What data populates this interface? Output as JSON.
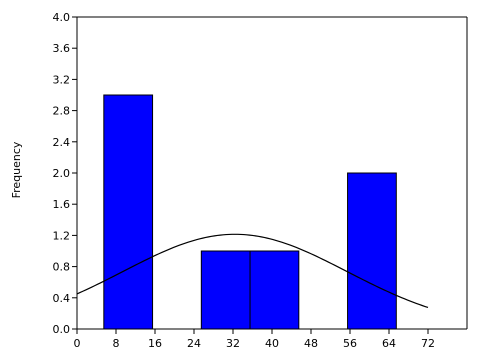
{
  "chart_data": {
    "type": "bar",
    "subtype": "histogram",
    "ylabel": "Frequency",
    "xlabel": "",
    "xlim": [
      0,
      80
    ],
    "ylim": [
      0,
      4.0
    ],
    "x_ticks": [
      "0",
      "8",
      "16",
      "24",
      "32",
      "40",
      "48",
      "56",
      "64",
      "72"
    ],
    "x_tick_values": [
      0,
      8,
      16,
      24,
      32,
      40,
      48,
      56,
      64,
      72
    ],
    "y_ticks": [
      "0.0",
      "0.4",
      "0.8",
      "1.2",
      "1.6",
      "2.0",
      "2.4",
      "2.8",
      "3.2",
      "3.6",
      "4.0"
    ],
    "y_tick_values": [
      0.0,
      0.4,
      0.8,
      1.2,
      1.6,
      2.0,
      2.4,
      2.8,
      3.2,
      3.6,
      4.0
    ],
    "bins": [
      {
        "x0": 5.5,
        "x1": 15.5,
        "count": 3
      },
      {
        "x0": 25.5,
        "x1": 35.5,
        "count": 1
      },
      {
        "x0": 35.5,
        "x1": 45.5,
        "count": 1
      },
      {
        "x0": 55.5,
        "x1": 65.5,
        "count": 2
      }
    ],
    "normal_curve": {
      "mean": 32.4,
      "sd": 23.0,
      "n": 7,
      "bin_width": 10,
      "x_range": [
        0,
        72
      ]
    },
    "bar_color": "#0000FF",
    "bar_edge_color": "#000000",
    "curve_color": "#000000",
    "grid": false
  }
}
